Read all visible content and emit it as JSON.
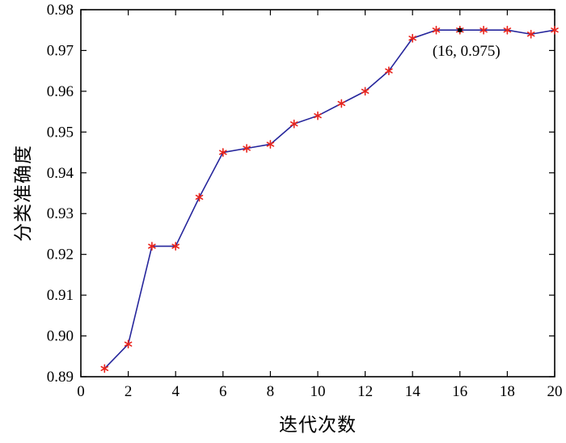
{
  "chart_data": {
    "type": "line",
    "title": "",
    "xlabel": "迭代次数",
    "ylabel": "分类准确度",
    "x": [
      1,
      2,
      3,
      4,
      5,
      6,
      7,
      8,
      9,
      10,
      11,
      12,
      13,
      14,
      15,
      16,
      17,
      18,
      19,
      20
    ],
    "y": [
      0.892,
      0.898,
      0.922,
      0.922,
      0.934,
      0.945,
      0.946,
      0.947,
      0.952,
      0.954,
      0.957,
      0.96,
      0.965,
      0.973,
      0.975,
      0.975,
      0.975,
      0.975,
      0.974,
      0.975
    ],
    "xlim": [
      0,
      20
    ],
    "ylim": [
      0.89,
      0.98
    ],
    "xticks": [
      0,
      2,
      4,
      6,
      8,
      10,
      12,
      14,
      16,
      18,
      20
    ],
    "yticks": [
      0.89,
      0.9,
      0.91,
      0.92,
      0.93,
      0.94,
      0.95,
      0.96,
      0.97,
      0.98
    ],
    "grid": false,
    "legend": null,
    "line_color": "#26269c",
    "marker_color": "#e8241c",
    "marker_style": "asterisk",
    "axis_color": "#000000",
    "annotation": {
      "x": 16,
      "y": 0.975,
      "text": "(16, 0.975)"
    }
  }
}
